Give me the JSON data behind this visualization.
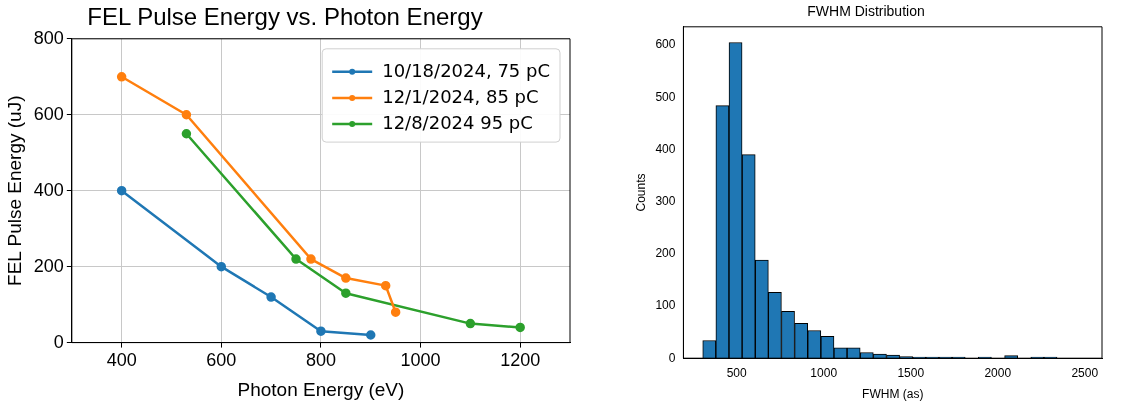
{
  "chart_data": [
    {
      "type": "line",
      "title": "FEL Pulse Energy vs. Photon Energy",
      "xlabel": "Photon Energy (eV)",
      "ylabel": "FEL Pulse Energy (uJ)",
      "xlim": [
        300,
        1300
      ],
      "xticks": [
        400,
        600,
        800,
        1000,
        1200
      ],
      "ylim": [
        0,
        800
      ],
      "yticks": [
        0,
        200,
        400,
        600,
        800
      ],
      "grid": true,
      "legend": "top right",
      "marker": "circle",
      "line_style": "solid",
      "series": [
        {
          "name": "10/18/2024, 75 pC",
          "color": "#1f77b4",
          "x": [
            400,
            600,
            700,
            800,
            900
          ],
          "values": [
            400,
            200,
            120,
            30,
            20
          ]
        },
        {
          "name": "12/1/2024, 85 pC",
          "color": "#ff7f0e",
          "x": [
            400,
            530,
            780,
            850,
            930,
            950
          ],
          "values": [
            700,
            600,
            220,
            170,
            150,
            80
          ]
        },
        {
          "name": "12/8/2024 95 pC",
          "color": "#2ca02c",
          "x": [
            530,
            750,
            850,
            1100,
            1200
          ],
          "values": [
            550,
            220,
            130,
            50,
            40
          ]
        }
      ]
    },
    {
      "type": "histogram",
      "title": "FWHM Distribution",
      "xlabel": "FWHM (as)",
      "ylabel": "Counts",
      "color": "#1f77b4",
      "xlim": [
        194,
        2599
      ],
      "xticks": [
        500,
        1000,
        1500,
        2000,
        2500
      ],
      "ylim": [
        0,
        635
      ],
      "yticks": [
        0,
        100,
        200,
        300,
        400,
        500,
        600
      ],
      "grid": false,
      "legend": false,
      "bins": [
        305,
        380,
        456,
        531,
        607,
        682,
        757,
        833,
        908,
        984,
        1059,
        1134,
        1210,
        1285,
        1361,
        1436,
        1511,
        1587,
        1662,
        1738,
        1813,
        1888,
        1964,
        2039,
        2115,
        2190,
        2265,
        2341
      ],
      "values": [
        34,
        484,
        605,
        390,
        188,
        126,
        90,
        67,
        53,
        42,
        20,
        20,
        11,
        8,
        6,
        3,
        2,
        2,
        2,
        2,
        0,
        2,
        0,
        5,
        0,
        2,
        2
      ]
    }
  ]
}
